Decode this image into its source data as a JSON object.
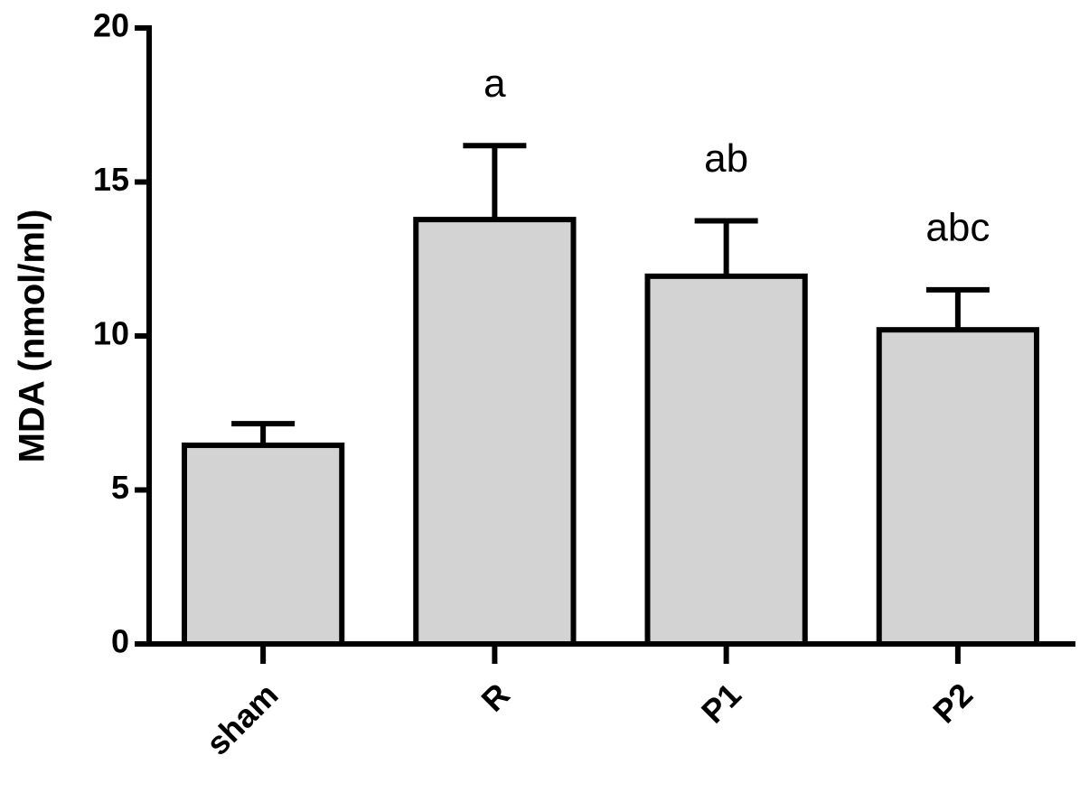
{
  "chart_data": {
    "type": "bar",
    "y_label": "MDA (nmol/ml)",
    "categories": [
      "sham",
      "R",
      "P1",
      "P2"
    ],
    "values": [
      6.45,
      13.78,
      11.94,
      10.2
    ],
    "errors": [
      0.7,
      2.4,
      1.8,
      1.3
    ],
    "annotations": [
      null,
      "a",
      "ab",
      "abc"
    ],
    "color": "#d3d3d3",
    "ylim": [
      0,
      20
    ],
    "yticks": [
      0,
      5,
      10,
      15,
      20
    ],
    "grid": false
  }
}
